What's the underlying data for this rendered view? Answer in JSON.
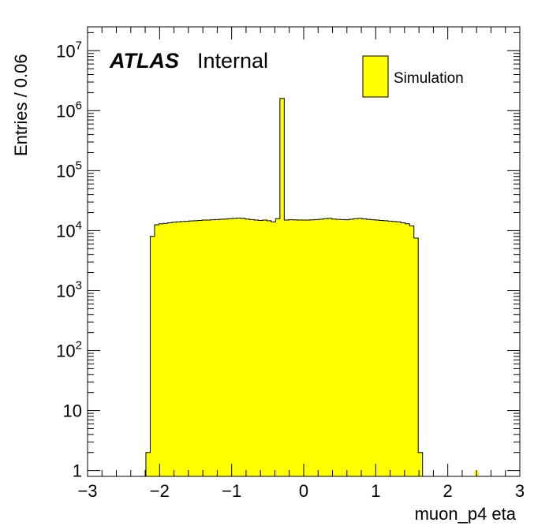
{
  "chart_data": {
    "type": "bar",
    "title": "",
    "xlabel": "muon_p4 eta",
    "ylabel": "Entries / 0.06",
    "label_bold": "ATLAS",
    "label_normal": "Internal",
    "legend_entry": "Simulation",
    "log_y": true,
    "xlim": [
      -3,
      3
    ],
    "ylim": [
      0.8,
      25000000
    ],
    "x_ticks": [
      {
        "value": -3,
        "label": "−3"
      },
      {
        "value": -2,
        "label": "−2"
      },
      {
        "value": -1,
        "label": "−1"
      },
      {
        "value": 0,
        "label": "0"
      },
      {
        "value": 1,
        "label": "1"
      },
      {
        "value": 2,
        "label": "2"
      },
      {
        "value": 3,
        "label": "3"
      }
    ],
    "y_ticks": [
      {
        "value": 1,
        "base": "1",
        "exp": ""
      },
      {
        "value": 10,
        "base": "10",
        "exp": ""
      },
      {
        "value": 100,
        "base": "10",
        "exp": "2"
      },
      {
        "value": 1000,
        "base": "10",
        "exp": "3"
      },
      {
        "value": 10000,
        "base": "10",
        "exp": "4"
      },
      {
        "value": 100000,
        "base": "10",
        "exp": "5"
      },
      {
        "value": 1000000,
        "base": "10",
        "exp": "6"
      },
      {
        "value": 10000000,
        "base": "10",
        "exp": "7"
      }
    ],
    "fill_color": "#ffff00",
    "line_color": "#000000",
    "bin_width": 0.06,
    "bin_start": -2.19,
    "values": [
      2,
      8000,
      12500,
      13000,
      13200,
      13500,
      13800,
      14000,
      14200,
      14300,
      14500,
      14600,
      14800,
      15000,
      15000,
      15200,
      15300,
      15500,
      15600,
      15800,
      16000,
      16200,
      16000,
      15600,
      15300,
      15000,
      14800,
      15000,
      14600,
      14000,
      15800,
      1600000,
      15000,
      15200,
      15100,
      15000,
      15000,
      15000,
      15100,
      15300,
      15500,
      15800,
      16000,
      15600,
      15400,
      15300,
      15200,
      15500,
      15800,
      16000,
      15700,
      15400,
      15200,
      15000,
      14800,
      14600,
      14400,
      14200,
      14000,
      13500,
      13000,
      12000,
      7500,
      2
    ],
    "extra_bins": [
      {
        "x": 2.37,
        "value": 1
      }
    ]
  }
}
